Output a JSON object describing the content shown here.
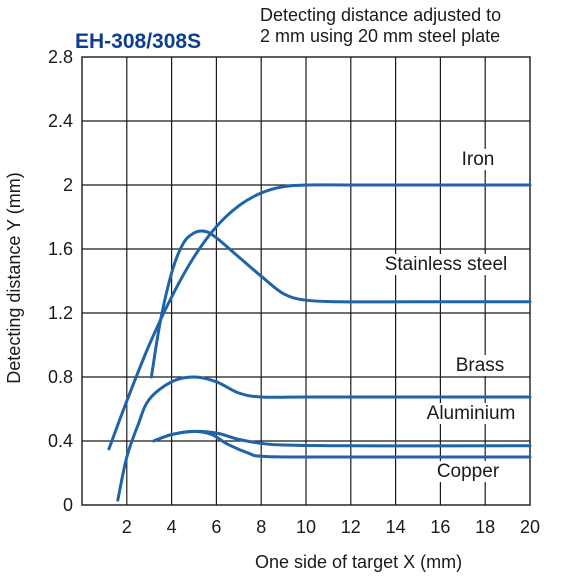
{
  "chart_data": {
    "type": "line",
    "title": "EH-308/308S",
    "note_lines": [
      "Detecting distance adjusted to",
      "2 mm using 20 mm steel plate"
    ],
    "xlabel": "One side of target X (mm)",
    "ylabel": "Detecting distance Y (mm)",
    "xlim": [
      0,
      20
    ],
    "ylim": [
      0,
      2.8
    ],
    "x_tick_labels": [
      "2",
      "4",
      "6",
      "8",
      "10",
      "12",
      "14",
      "16",
      "18",
      "20"
    ],
    "y_tick_labels": [
      "0",
      "0.4",
      "0.8",
      "1.2",
      "1.6",
      "2",
      "2.4",
      "2.8"
    ],
    "x_ticks": [
      2,
      4,
      6,
      8,
      10,
      12,
      14,
      16,
      18,
      20
    ],
    "y_ticks": [
      0,
      0.4,
      0.8,
      1.2,
      1.6,
      2.0,
      2.4,
      2.8
    ],
    "grid": true,
    "line_color": "#1f63a8",
    "title_color": "#0d3f91",
    "series": [
      {
        "name": "Iron",
        "points": [
          [
            1.2,
            0.35
          ],
          [
            2.0,
            0.65
          ],
          [
            3.0,
            1.0
          ],
          [
            4.0,
            1.3
          ],
          [
            5.0,
            1.55
          ],
          [
            6.0,
            1.74
          ],
          [
            7.0,
            1.87
          ],
          [
            8.0,
            1.95
          ],
          [
            9.0,
            1.99
          ],
          [
            10.0,
            2.0
          ],
          [
            12.0,
            2.0
          ],
          [
            15.0,
            2.0
          ],
          [
            20.0,
            2.0
          ]
        ]
      },
      {
        "name": "Stainless steel",
        "points": [
          [
            3.1,
            0.8
          ],
          [
            3.5,
            1.15
          ],
          [
            4.0,
            1.45
          ],
          [
            4.5,
            1.63
          ],
          [
            5.0,
            1.7
          ],
          [
            5.5,
            1.71
          ],
          [
            6.0,
            1.67
          ],
          [
            7.0,
            1.55
          ],
          [
            8.0,
            1.43
          ],
          [
            9.0,
            1.32
          ],
          [
            10.0,
            1.28
          ],
          [
            11.5,
            1.27
          ],
          [
            15.0,
            1.27
          ],
          [
            20.0,
            1.27
          ]
        ]
      },
      {
        "name": "Brass",
        "points": [
          [
            1.6,
            0.03
          ],
          [
            2.0,
            0.3
          ],
          [
            2.5,
            0.5
          ],
          [
            3.0,
            0.66
          ],
          [
            4.0,
            0.77
          ],
          [
            5.0,
            0.8
          ],
          [
            6.0,
            0.77
          ],
          [
            7.0,
            0.7
          ],
          [
            8.0,
            0.675
          ],
          [
            10.0,
            0.675
          ],
          [
            15.0,
            0.675
          ],
          [
            20.0,
            0.675
          ]
        ]
      },
      {
        "name": "Aluminium",
        "points": [
          [
            3.2,
            0.4
          ],
          [
            4.0,
            0.44
          ],
          [
            5.0,
            0.46
          ],
          [
            6.0,
            0.45
          ],
          [
            7.0,
            0.41
          ],
          [
            8.0,
            0.385
          ],
          [
            9.0,
            0.375
          ],
          [
            12.0,
            0.37
          ],
          [
            20.0,
            0.37
          ]
        ]
      },
      {
        "name": "Copper",
        "points": [
          [
            3.2,
            0.4
          ],
          [
            4.0,
            0.44
          ],
          [
            5.0,
            0.46
          ],
          [
            5.8,
            0.44
          ],
          [
            6.5,
            0.38
          ],
          [
            7.5,
            0.32
          ],
          [
            8.0,
            0.305
          ],
          [
            10.0,
            0.3
          ],
          [
            20.0,
            0.3
          ]
        ]
      }
    ]
  }
}
